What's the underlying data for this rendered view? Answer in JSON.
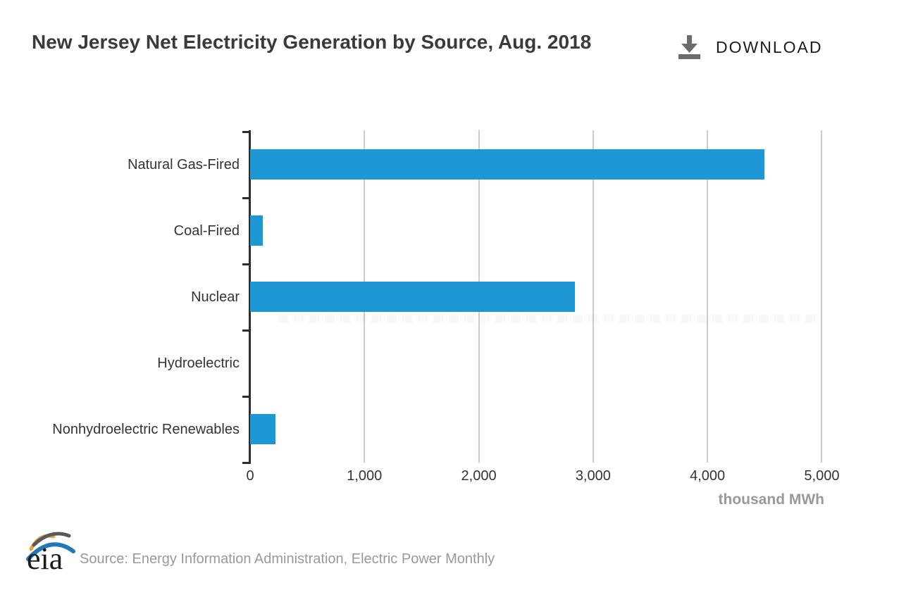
{
  "header": {
    "title": "New Jersey Net Electricity Generation by Source, Aug. 2018",
    "download_label": "DOWNLOAD"
  },
  "chart_data": {
    "type": "bar",
    "orientation": "horizontal",
    "title": "New Jersey Net Electricity Generation by Source, Aug. 2018",
    "categories": [
      "Natural Gas-Fired",
      "Coal-Fired",
      "Nuclear",
      "Hydroelectric",
      "Nonhydroelectric Renewables"
    ],
    "values": [
      4500,
      110,
      2840,
      0,
      220
    ],
    "unit": "thousand MWh",
    "xlabel": "thousand MWh",
    "xlim": [
      0,
      5250
    ],
    "xticks": [
      0,
      1000,
      2000,
      3000,
      4000,
      5000
    ],
    "xtick_labels": [
      "0",
      "1,000",
      "2,000",
      "3,000",
      "4,000",
      "5,000"
    ],
    "grid": true,
    "legend": "none",
    "bar_color": "#1d98d4"
  },
  "footer": {
    "logo_text": "eia",
    "source": "Source: Energy Information Administration, Electric Power Monthly"
  },
  "colors": {
    "bar": "#1d98d4",
    "axis": "#2d2d2d",
    "gridline": "#cccccc",
    "title_text": "#3a3a3a",
    "label_text": "#333333",
    "muted_text": "#999999",
    "download_icon": "#6b6b6b",
    "download_text": "#1b1b1b",
    "logo_blue": "#2178b5",
    "logo_gold": "#e8a33d",
    "logo_gray": "#58595b"
  }
}
